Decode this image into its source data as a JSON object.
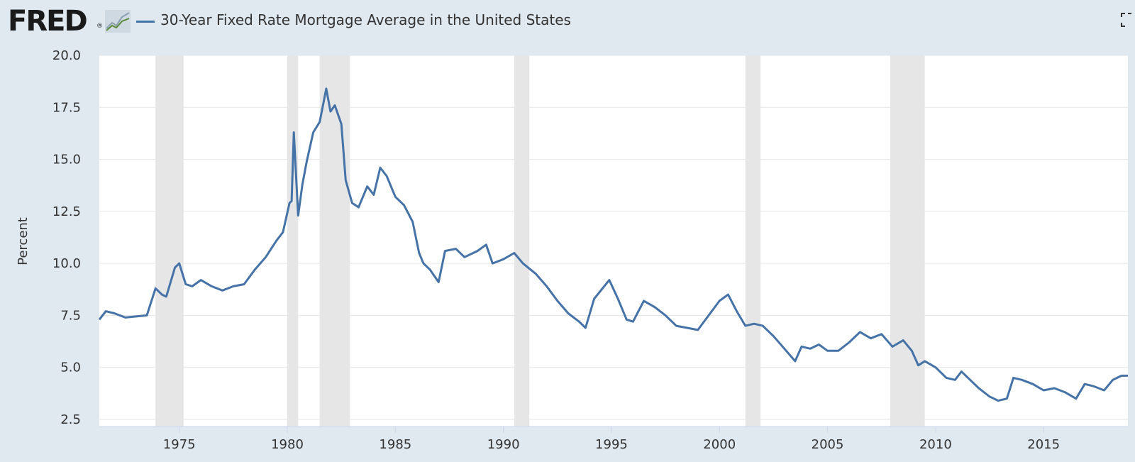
{
  "header": {
    "logo_text": "FRED",
    "logo_reg": "®",
    "logo_icon": "line-chart-icon",
    "fullscreen_icon": "fullscreen-icon"
  },
  "chart_data": {
    "type": "line",
    "title": "30-Year Fixed Rate Mortgage Average in the United States",
    "ylabel": "Percent",
    "xlim": [
      1971.3,
      2018.9
    ],
    "ylim": [
      2.5,
      20.0
    ],
    "yticks": [
      "2.5",
      "5.0",
      "7.5",
      "10.0",
      "12.5",
      "15.0",
      "17.5",
      "20.0"
    ],
    "xticks": [
      "1975",
      "1980",
      "1985",
      "1990",
      "1995",
      "2000",
      "2005",
      "2010",
      "2015"
    ],
    "grid": true,
    "recessions": [
      [
        1973.9,
        1975.2
      ],
      [
        1980.0,
        1980.5
      ],
      [
        1981.5,
        1982.9
      ],
      [
        1990.5,
        1991.2
      ],
      [
        2001.2,
        2001.9
      ],
      [
        2007.9,
        2009.5
      ]
    ],
    "colors": {
      "line": "#4572a7",
      "recession": "#e6e6e6",
      "plot_bg": "#ffffff",
      "page_bg": "#e1e9f0"
    },
    "series": [
      {
        "name": "30-Year Fixed Rate Mortgage Average in the United States",
        "x": [
          1971.3,
          1971.6,
          1972.0,
          1972.5,
          1973.0,
          1973.5,
          1973.9,
          1974.2,
          1974.4,
          1974.8,
          1975.0,
          1975.3,
          1975.6,
          1976.0,
          1976.5,
          1977.0,
          1977.5,
          1978.0,
          1978.5,
          1979.0,
          1979.5,
          1979.8,
          1980.1,
          1980.2,
          1980.3,
          1980.5,
          1980.7,
          1980.9,
          1981.2,
          1981.5,
          1981.8,
          1982.0,
          1982.2,
          1982.5,
          1982.7,
          1983.0,
          1983.3,
          1983.7,
          1984.0,
          1984.3,
          1984.6,
          1985.0,
          1985.4,
          1985.8,
          1986.1,
          1986.3,
          1986.6,
          1987.0,
          1987.3,
          1987.8,
          1988.2,
          1988.8,
          1989.2,
          1989.5,
          1990.0,
          1990.5,
          1990.9,
          1991.5,
          1992.0,
          1992.5,
          1993.0,
          1993.5,
          1993.8,
          1994.2,
          1994.9,
          1995.3,
          1995.7,
          1996.0,
          1996.5,
          1997.0,
          1997.5,
          1998.0,
          1998.5,
          1999.0,
          1999.5,
          2000.0,
          2000.4,
          2000.8,
          2001.2,
          2001.6,
          2002.0,
          2002.5,
          2003.0,
          2003.5,
          2003.8,
          2004.2,
          2004.6,
          2005.0,
          2005.5,
          2006.0,
          2006.5,
          2007.0,
          2007.5,
          2008.0,
          2008.5,
          2008.9,
          2009.2,
          2009.5,
          2010.0,
          2010.5,
          2010.9,
          2011.2,
          2011.5,
          2012.0,
          2012.5,
          2012.9,
          2013.3,
          2013.6,
          2014.0,
          2014.5,
          2015.0,
          2015.5,
          2016.0,
          2016.5,
          2016.9,
          2017.3,
          2017.8,
          2018.2,
          2018.6,
          2018.9
        ],
        "y": [
          7.3,
          7.7,
          7.6,
          7.4,
          7.45,
          7.5,
          8.8,
          8.5,
          8.4,
          9.8,
          10.0,
          9.0,
          8.9,
          9.2,
          8.9,
          8.7,
          8.9,
          9.0,
          9.7,
          10.3,
          11.1,
          11.5,
          12.9,
          13.0,
          16.3,
          12.3,
          13.8,
          14.9,
          16.3,
          16.8,
          18.4,
          17.3,
          17.6,
          16.7,
          14.0,
          12.9,
          12.7,
          13.7,
          13.3,
          14.6,
          14.2,
          13.2,
          12.8,
          12.0,
          10.5,
          10.0,
          9.7,
          9.1,
          10.6,
          10.7,
          10.3,
          10.6,
          10.9,
          10.0,
          10.2,
          10.5,
          10.0,
          9.5,
          8.9,
          8.2,
          7.6,
          7.2,
          6.9,
          8.3,
          9.2,
          8.3,
          7.3,
          7.2,
          8.2,
          7.9,
          7.5,
          7.0,
          6.9,
          6.8,
          7.5,
          8.2,
          8.5,
          7.7,
          7.0,
          7.1,
          7.0,
          6.5,
          5.9,
          5.3,
          6.0,
          5.9,
          6.1,
          5.8,
          5.8,
          6.2,
          6.7,
          6.4,
          6.6,
          6.0,
          6.3,
          5.8,
          5.1,
          5.3,
          5.0,
          4.5,
          4.4,
          4.8,
          4.5,
          4.0,
          3.6,
          3.4,
          3.5,
          4.5,
          4.4,
          4.2,
          3.9,
          4.0,
          3.8,
          3.5,
          4.2,
          4.1,
          3.9,
          4.4,
          4.6,
          4.6
        ]
      }
    ]
  }
}
